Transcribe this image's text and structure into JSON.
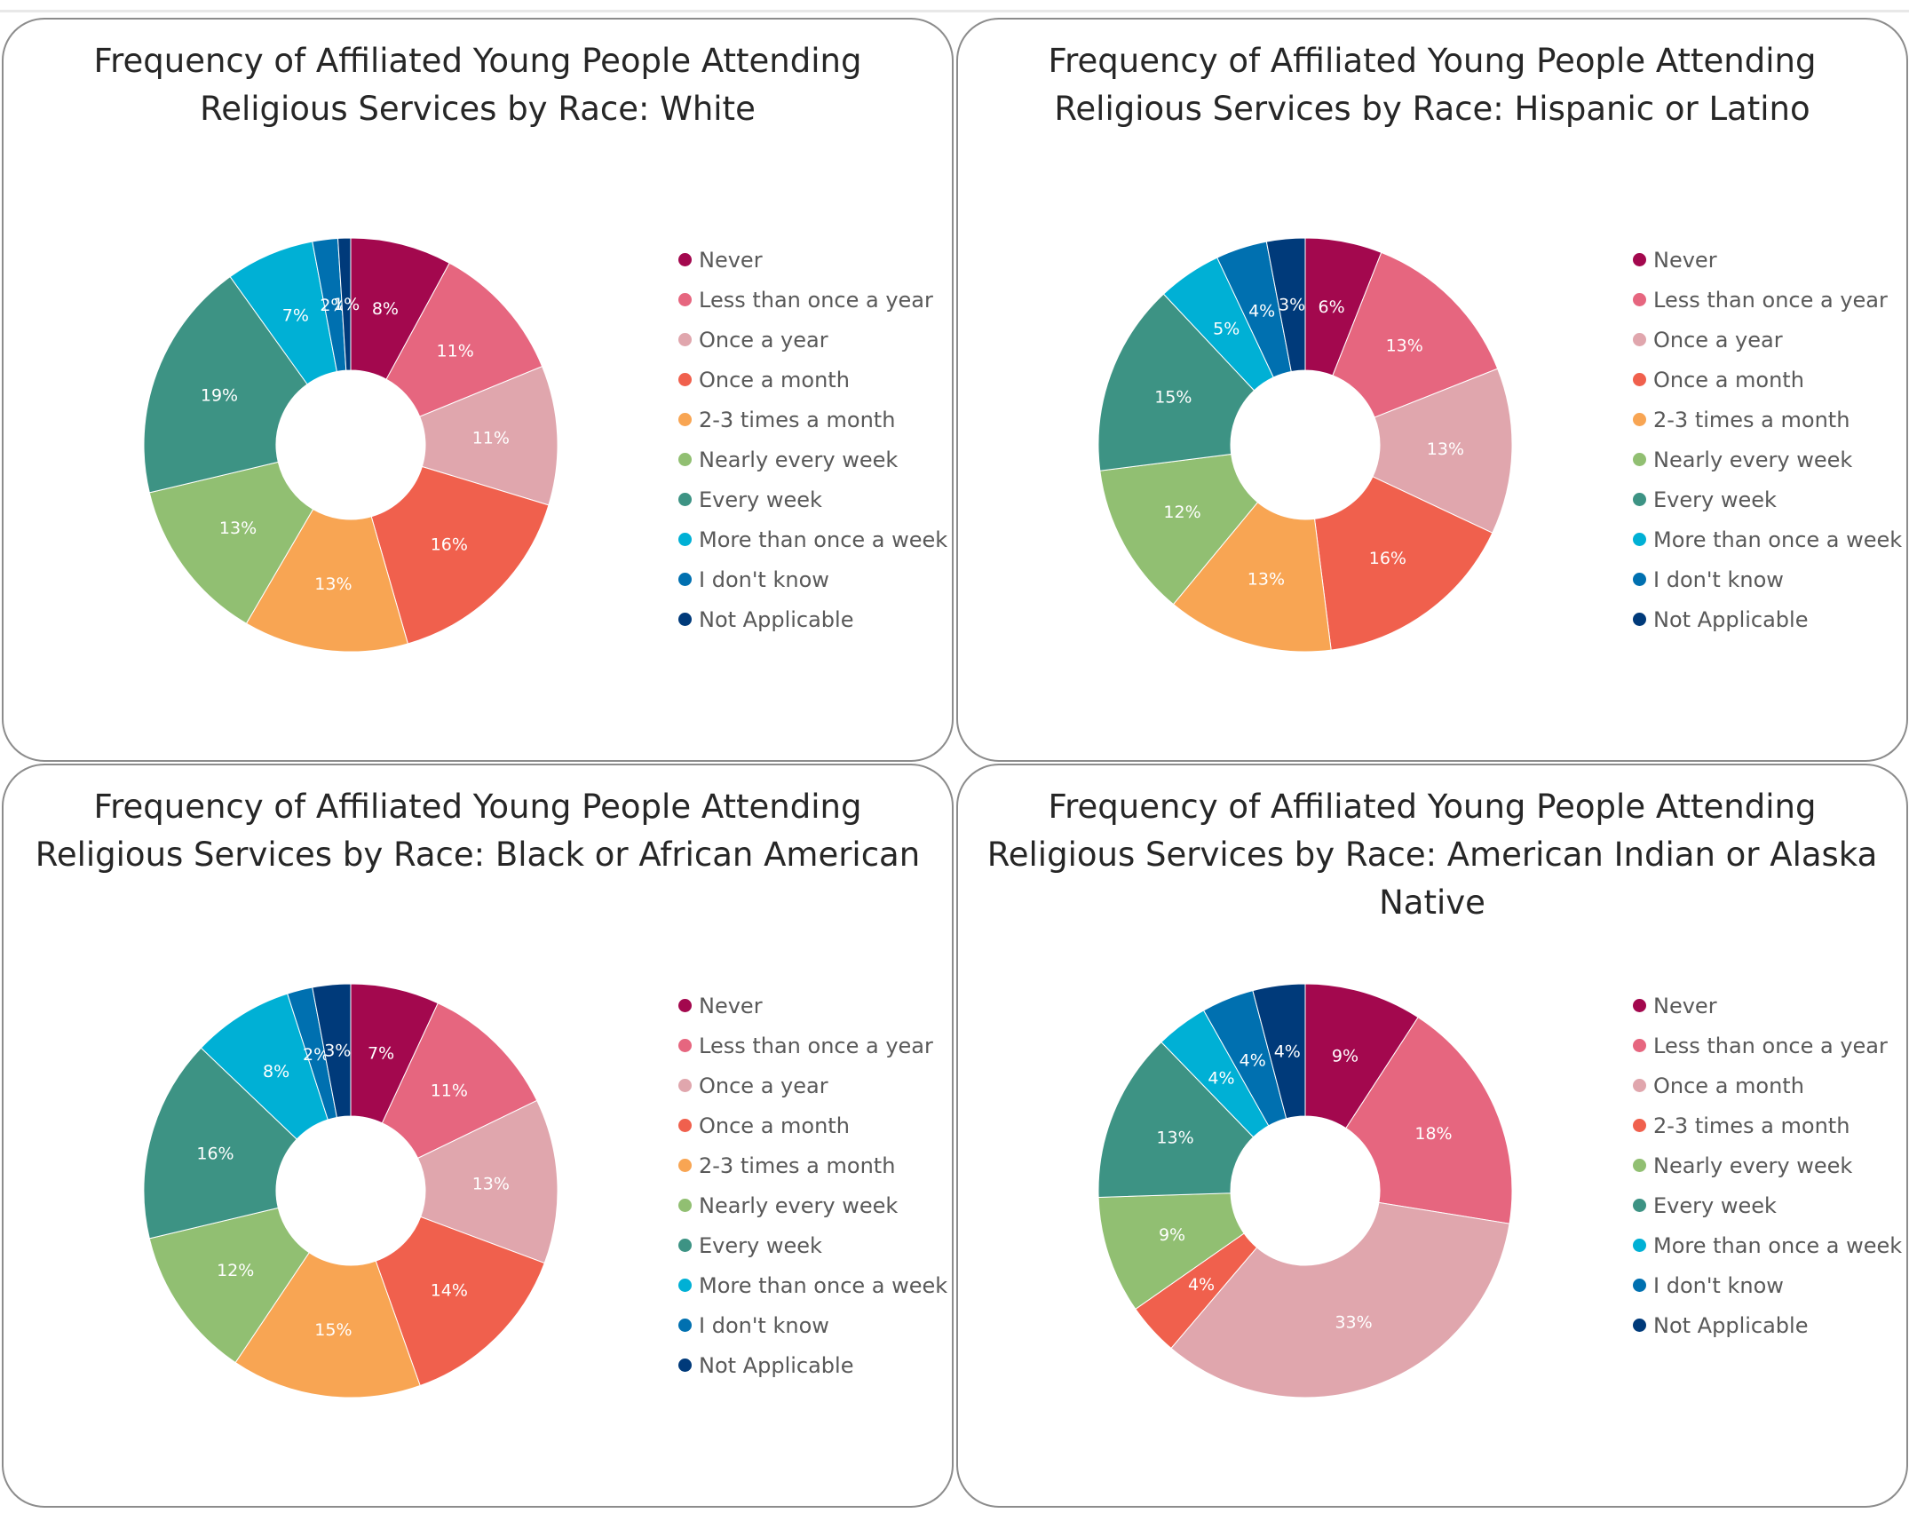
{
  "colors": {
    "Never": "#a3084e",
    "Less than once a year": "#e6667f",
    "Once a year": "#e0a6ad",
    "Once a month": "#f0604d",
    "2-3 times a month": "#f8a553",
    "Nearly every week": "#91bf72",
    "Every week": "#3d9384",
    "More than once a week": "#00b0d5",
    "I don't know": "#0070b0",
    "Not Applicable": "#003a7a"
  },
  "chart_data": [
    {
      "type": "pie",
      "style": "donut",
      "title": "Frequency of Affiliated Young People Attending Religious Services by Race: White",
      "categories": [
        "Never",
        "Less than once a year",
        "Once a year",
        "Once a month",
        "2-3 times a month",
        "Nearly every week",
        "Every week",
        "More than once a week",
        "I don't know",
        "Not Applicable"
      ],
      "values": [
        8,
        11,
        11,
        16,
        13,
        13,
        19,
        7,
        2,
        1
      ],
      "labels": [
        "8%",
        "11%",
        "11%",
        "16%",
        "13%",
        "13%",
        "19%",
        "7%",
        "2%",
        "1%"
      ],
      "legend": "right"
    },
    {
      "type": "pie",
      "style": "donut",
      "title": "Frequency of Affiliated Young People Attending Religious Services by Race: Hispanic or Latino",
      "categories": [
        "Never",
        "Less than once a year",
        "Once a year",
        "Once a month",
        "2-3 times a month",
        "Nearly every week",
        "Every week",
        "More than once a week",
        "I don't know",
        "Not Applicable"
      ],
      "values": [
        6,
        13,
        13,
        16,
        13,
        12,
        15,
        5,
        4,
        3
      ],
      "labels": [
        "6%",
        "13%",
        "13%",
        "16%",
        "13%",
        "12%",
        "15%",
        "5%",
        "4%",
        "3%"
      ],
      "legend": "right"
    },
    {
      "type": "pie",
      "style": "donut",
      "title": "Frequency of Affiliated Young People Attending Religious Services by Race: Black or African American",
      "categories": [
        "Never",
        "Less than once a year",
        "Once a year",
        "Once a month",
        "2-3 times a month",
        "Nearly every week",
        "Every week",
        "More than once a week",
        "I don't know",
        "Not Applicable"
      ],
      "values": [
        7,
        11,
        13,
        14,
        15,
        12,
        16,
        8,
        2,
        3
      ],
      "labels": [
        "7%",
        "11%",
        "13%",
        "14%",
        "15%",
        "12%",
        "16%",
        "8%",
        "2%",
        "3%"
      ],
      "legend": "right"
    },
    {
      "type": "pie",
      "style": "donut",
      "title": "Frequency of Affiliated Young People Attending Religious Services by Race: American Indian or Alaska Native",
      "categories": [
        "Never",
        "Less than once a year",
        "Once a month",
        "2-3 times a month",
        "Nearly every week",
        "Every week",
        "More than once a week",
        "I don't know",
        "Not Applicable"
      ],
      "values": [
        9,
        18,
        33,
        4,
        9,
        13,
        4,
        4,
        4
      ],
      "labels": [
        "9%",
        "18%",
        "33%",
        "4%",
        "9%",
        "13%",
        "4%",
        "4%",
        "4%"
      ],
      "slice_colors": [
        "#a3084e",
        "#e6667f",
        "#e0a6ad",
        "#f0604d",
        "#91bf72",
        "#3d9384",
        "#00b0d5",
        "#0070b0",
        "#003a7a"
      ],
      "legend_colors": [
        "#a3084e",
        "#e6667f",
        "#e0a6ad",
        "#f0604d",
        "#91bf72",
        "#3d9384",
        "#00b0d5",
        "#0070b0",
        "#003a7a"
      ],
      "legend": "right"
    }
  ]
}
